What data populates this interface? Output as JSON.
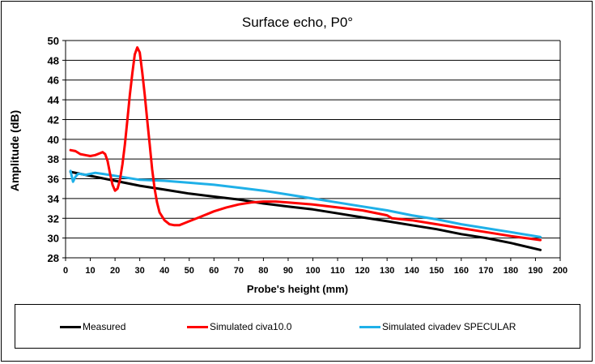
{
  "chart_data": {
    "type": "line",
    "title": "Surface echo, P0°",
    "xlabel": "Probe's height (mm)",
    "ylabel": "Amplitude (dB)",
    "xlim": [
      0,
      200
    ],
    "ylim": [
      28,
      50
    ],
    "xticks": [
      "0",
      "10",
      "20",
      "30",
      "40",
      "50",
      "60",
      "70",
      "80",
      "90",
      "100",
      "110",
      "120",
      "130",
      "140",
      "150",
      "160",
      "170",
      "180",
      "190",
      "200"
    ],
    "yticks": [
      "28",
      "30",
      "32",
      "34",
      "36",
      "38",
      "40",
      "42",
      "44",
      "46",
      "48",
      "50"
    ],
    "grid": "horizontal",
    "legend_position": "bottom",
    "series": [
      {
        "name": "Measured",
        "color": "#000000",
        "x": [
          2,
          10,
          20,
          30,
          40,
          50,
          60,
          70,
          80,
          90,
          100,
          110,
          120,
          130,
          140,
          150,
          160,
          170,
          180,
          192
        ],
        "y": [
          36.7,
          36.3,
          35.8,
          35.3,
          34.9,
          34.5,
          34.2,
          33.9,
          33.5,
          33.2,
          32.9,
          32.5,
          32.1,
          31.7,
          31.3,
          30.9,
          30.4,
          30.0,
          29.5,
          28.8
        ]
      },
      {
        "name": "Simulated civa10.0",
        "color": "#ff0000",
        "x": [
          2,
          4,
          6,
          8,
          10,
          12,
          14,
          15,
          16,
          17,
          18,
          19,
          20,
          21,
          22,
          23,
          24,
          25,
          26,
          27,
          28,
          29,
          30,
          31,
          32,
          33,
          34,
          35,
          36,
          37,
          38,
          40,
          42,
          44,
          46,
          48,
          50,
          52,
          54,
          56,
          58,
          60,
          65,
          70,
          75,
          80,
          85,
          90,
          95,
          100,
          110,
          120,
          130,
          132,
          140,
          150,
          160,
          170,
          180,
          192
        ],
        "y": [
          38.9,
          38.8,
          38.5,
          38.4,
          38.3,
          38.4,
          38.6,
          38.7,
          38.5,
          37.8,
          36.5,
          35.4,
          34.8,
          35.0,
          35.9,
          37.5,
          39.5,
          42.0,
          44.5,
          46.7,
          48.6,
          49.3,
          48.8,
          46.8,
          44.5,
          42.0,
          39.5,
          37.0,
          35.0,
          33.6,
          32.6,
          31.8,
          31.4,
          31.3,
          31.3,
          31.5,
          31.7,
          31.9,
          32.1,
          32.3,
          32.5,
          32.7,
          33.1,
          33.4,
          33.6,
          33.7,
          33.7,
          33.6,
          33.5,
          33.4,
          33.1,
          32.8,
          32.3,
          32.0,
          31.8,
          31.4,
          31.0,
          30.6,
          30.2,
          29.8
        ]
      },
      {
        "name": "Simulated civadev SPECULAR",
        "color": "#1fb0e8",
        "x": [
          2,
          3,
          4,
          5,
          6,
          8,
          10,
          12,
          15,
          20,
          30,
          40,
          50,
          60,
          70,
          80,
          90,
          100,
          110,
          120,
          130,
          140,
          150,
          160,
          170,
          180,
          192
        ],
        "y": [
          36.8,
          35.7,
          36.2,
          36.5,
          36.5,
          36.4,
          36.5,
          36.6,
          36.5,
          36.3,
          35.9,
          35.8,
          35.6,
          35.4,
          35.1,
          34.8,
          34.4,
          34.0,
          33.6,
          33.2,
          32.8,
          32.3,
          31.9,
          31.4,
          31.0,
          30.6,
          30.1
        ]
      }
    ]
  }
}
